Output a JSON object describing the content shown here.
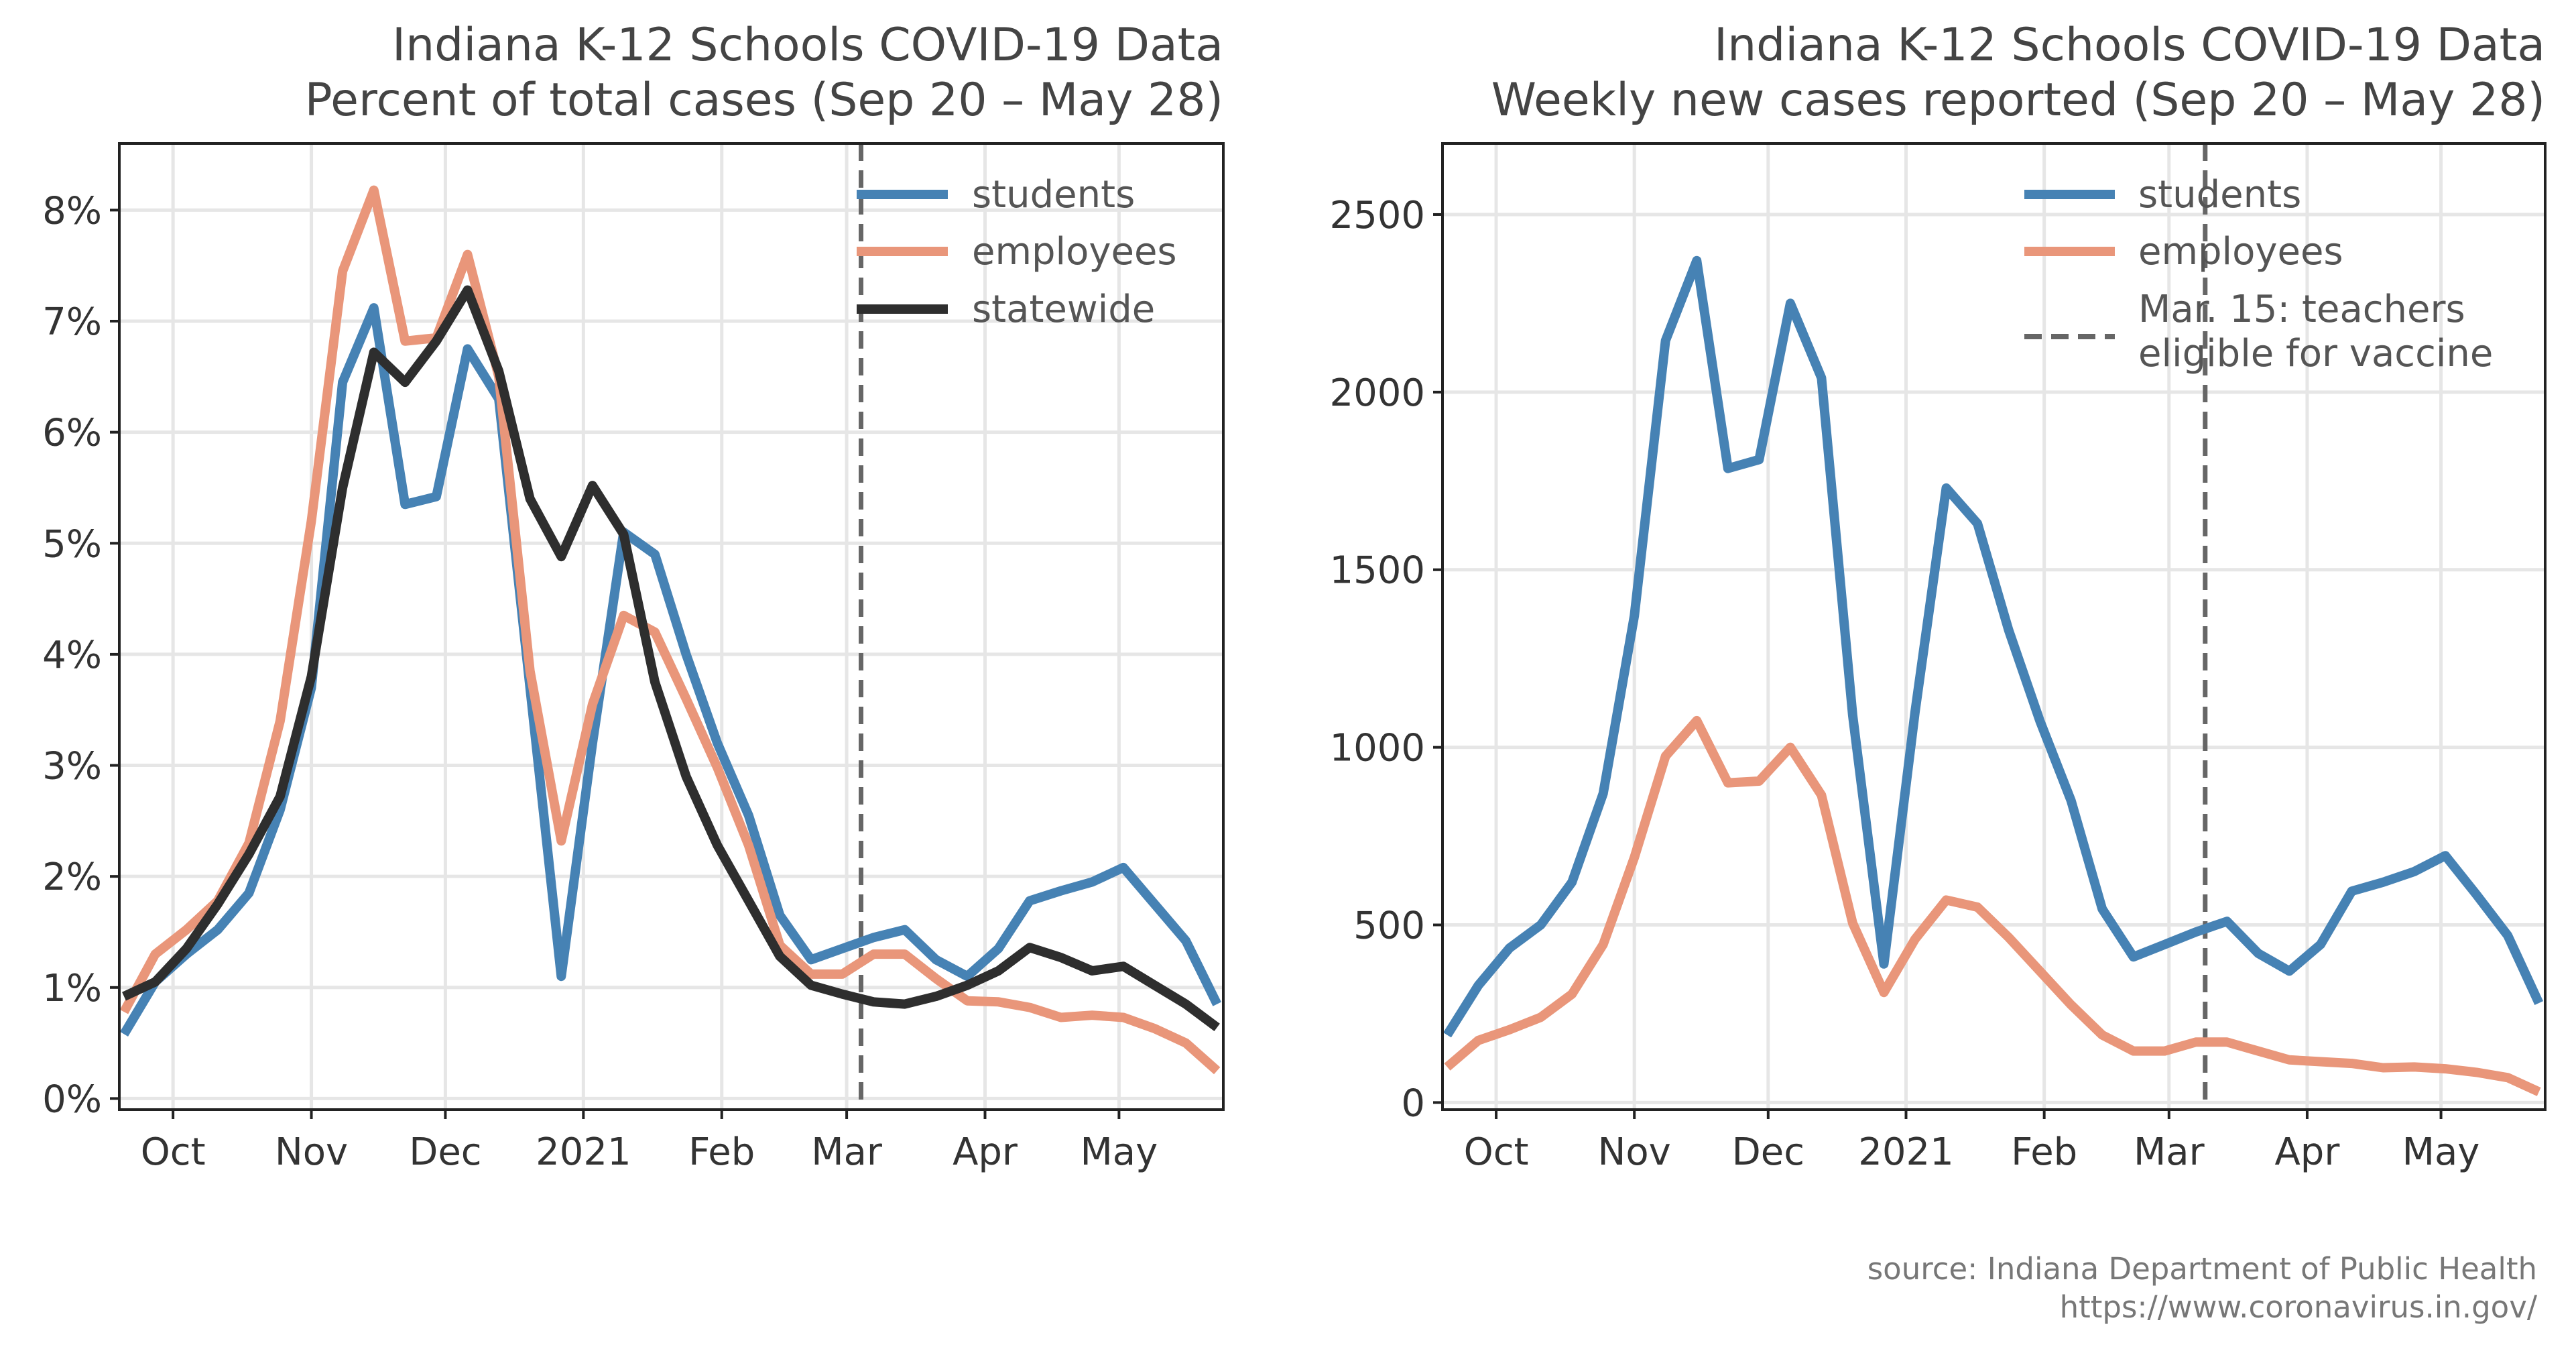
{
  "colors": {
    "students": "#4682b4",
    "employees": "#e9967a",
    "statewide": "#2e2e2e",
    "vline": "#666666"
  },
  "chart_data": [
    {
      "type": "line",
      "title": "Indiana K-12 Schools COVID-19 Data",
      "subtitle": "Percent of total cases (Sep 20 – May 28)",
      "xlabel": "",
      "ylabel": "",
      "x_unit": "weeks since Sep 20 2020",
      "xlim": [
        -0.15,
        35.2
      ],
      "ylim": [
        -0.1,
        8.6
      ],
      "yticks": [
        0,
        1,
        2,
        3,
        4,
        5,
        6,
        7,
        8
      ],
      "ytick_labels": [
        "0%",
        "1%",
        "2%",
        "3%",
        "4%",
        "5%",
        "6%",
        "7%",
        "8%"
      ],
      "xtick_labels": [
        "Oct",
        "Nov",
        "Dec",
        "2021",
        "Feb",
        "Mar",
        "Apr",
        "May"
      ],
      "grid": true,
      "legend_position": "top-right",
      "vline": {
        "label": "",
        "x": 23.6
      },
      "series": [
        {
          "name": "students",
          "values": [
            0.58,
            1.05,
            1.3,
            1.52,
            1.85,
            2.6,
            3.7,
            6.45,
            7.12,
            5.35,
            5.42,
            6.75,
            6.3,
            3.7,
            1.1,
            3.2,
            5.1,
            4.9,
            4.0,
            3.2,
            2.55,
            1.65,
            1.25,
            1.35,
            1.45,
            1.52,
            1.25,
            1.1,
            1.35,
            1.78,
            1.87,
            1.95,
            2.08,
            1.75,
            1.42,
            0.85
          ]
        },
        {
          "name": "employees",
          "values": [
            0.78,
            1.3,
            1.52,
            1.78,
            2.3,
            3.4,
            5.2,
            7.45,
            8.18,
            6.82,
            6.85,
            7.6,
            6.5,
            3.85,
            2.32,
            3.55,
            4.35,
            4.2,
            3.6,
            2.98,
            2.28,
            1.38,
            1.12,
            1.12,
            1.3,
            1.3,
            1.08,
            0.88,
            0.87,
            0.82,
            0.73,
            0.75,
            0.73,
            0.63,
            0.5,
            0.25
          ]
        },
        {
          "name": "statewide",
          "values": [
            0.92,
            1.05,
            1.35,
            1.75,
            2.2,
            2.72,
            3.8,
            5.5,
            6.72,
            6.45,
            6.82,
            7.28,
            6.55,
            5.4,
            4.88,
            5.52,
            5.08,
            3.75,
            2.9,
            2.28,
            1.78,
            1.28,
            1.02,
            0.94,
            0.87,
            0.85,
            0.92,
            1.02,
            1.15,
            1.36,
            1.27,
            1.15,
            1.19,
            1.02,
            0.85,
            0.64
          ]
        }
      ]
    },
    {
      "type": "line",
      "title": "Indiana K-12 Schools COVID-19 Data",
      "subtitle": "Weekly new cases reported (Sep 20 – May 28)",
      "xlabel": "",
      "ylabel": "",
      "x_unit": "weeks since Sep 20 2020",
      "xlim": [
        -0.15,
        35.2
      ],
      "ylim": [
        -20,
        2700
      ],
      "yticks": [
        0,
        500,
        1000,
        1500,
        2000,
        2500
      ],
      "ytick_labels": [
        "0",
        "500",
        "1000",
        "1500",
        "2000",
        "2500"
      ],
      "xtick_labels": [
        "Oct",
        "Nov",
        "Dec",
        "2021",
        "Feb",
        "Mar",
        "Apr",
        "May"
      ],
      "grid": true,
      "legend_position": "top-right",
      "vline": {
        "label": "Mar. 15: teachers eligible for vaccine",
        "x": 24.3
      },
      "series": [
        {
          "name": "students",
          "values": [
            190,
            330,
            435,
            500,
            620,
            870,
            1370,
            2145,
            2370,
            1785,
            1810,
            2250,
            2040,
            1090,
            390,
            1100,
            1730,
            1630,
            1330,
            1075,
            850,
            545,
            410,
            445,
            480,
            510,
            420,
            370,
            445,
            595,
            620,
            650,
            695,
            585,
            470,
            280
          ]
        },
        {
          "name": "employees",
          "values": [
            100,
            175,
            205,
            240,
            305,
            445,
            690,
            975,
            1075,
            900,
            905,
            1000,
            865,
            505,
            310,
            460,
            570,
            550,
            465,
            370,
            275,
            190,
            145,
            145,
            170,
            170,
            145,
            120,
            115,
            110,
            98,
            100,
            95,
            85,
            70,
            30
          ]
        }
      ]
    }
  ],
  "source": {
    "line1": "source: Indiana Department of Public Health",
    "line2": "https://www.coronavirus.in.gov/"
  }
}
